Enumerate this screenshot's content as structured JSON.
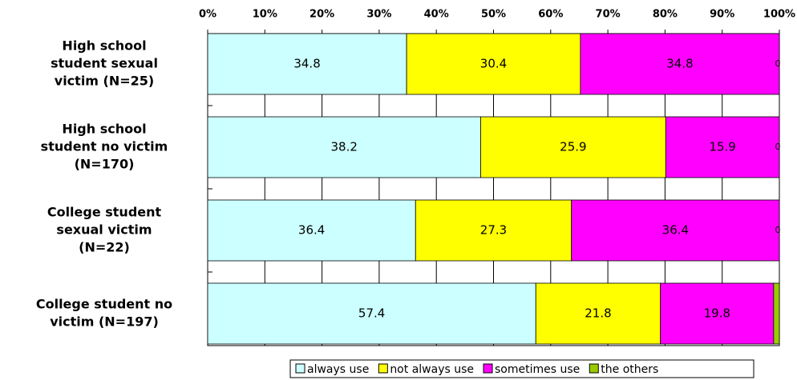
{
  "chart_data": {
    "type": "bar",
    "orientation": "horizontal",
    "stacking": "percent",
    "categories": [
      [
        "High school",
        "student  sexual",
        "victim (N=25)"
      ],
      [
        "High school",
        "student no victim",
        "(N=170)"
      ],
      [
        "College student",
        "sexual victim",
        "(N=22)"
      ],
      [
        "College student no",
        "victim (N=197)"
      ]
    ],
    "series": [
      {
        "name": "always use",
        "color": "#ccffff",
        "values": [
          34.8,
          38.2,
          36.4,
          57.4
        ]
      },
      {
        "name": "not always use",
        "color": "#ffff00",
        "values": [
          30.4,
          25.9,
          27.3,
          21.8
        ]
      },
      {
        "name": "sometimes use",
        "color": "#ff00ff",
        "values": [
          34.8,
          15.9,
          36.4,
          19.8
        ]
      },
      {
        "name": "the others",
        "color": "#99cc00",
        "values": [
          0,
          0,
          0,
          1.0
        ],
        "value_labels": [
          "0",
          "0",
          "0",
          null
        ]
      }
    ],
    "xlim": [
      0,
      100
    ],
    "xticks": [
      {
        "value": 0,
        "label": "0%"
      },
      {
        "value": 10,
        "label": "10%"
      },
      {
        "value": 20,
        "label": "20%"
      },
      {
        "value": 30,
        "label": "30%"
      },
      {
        "value": 40,
        "label": "40%"
      },
      {
        "value": 50,
        "label": "50%"
      },
      {
        "value": 60,
        "label": "60%"
      },
      {
        "value": 70,
        "label": "70%"
      },
      {
        "value": 80,
        "label": "80%"
      },
      {
        "value": 90,
        "label": "90%"
      },
      {
        "value": 100,
        "label": "100%"
      }
    ],
    "grid": true,
    "legend": "bottom"
  }
}
